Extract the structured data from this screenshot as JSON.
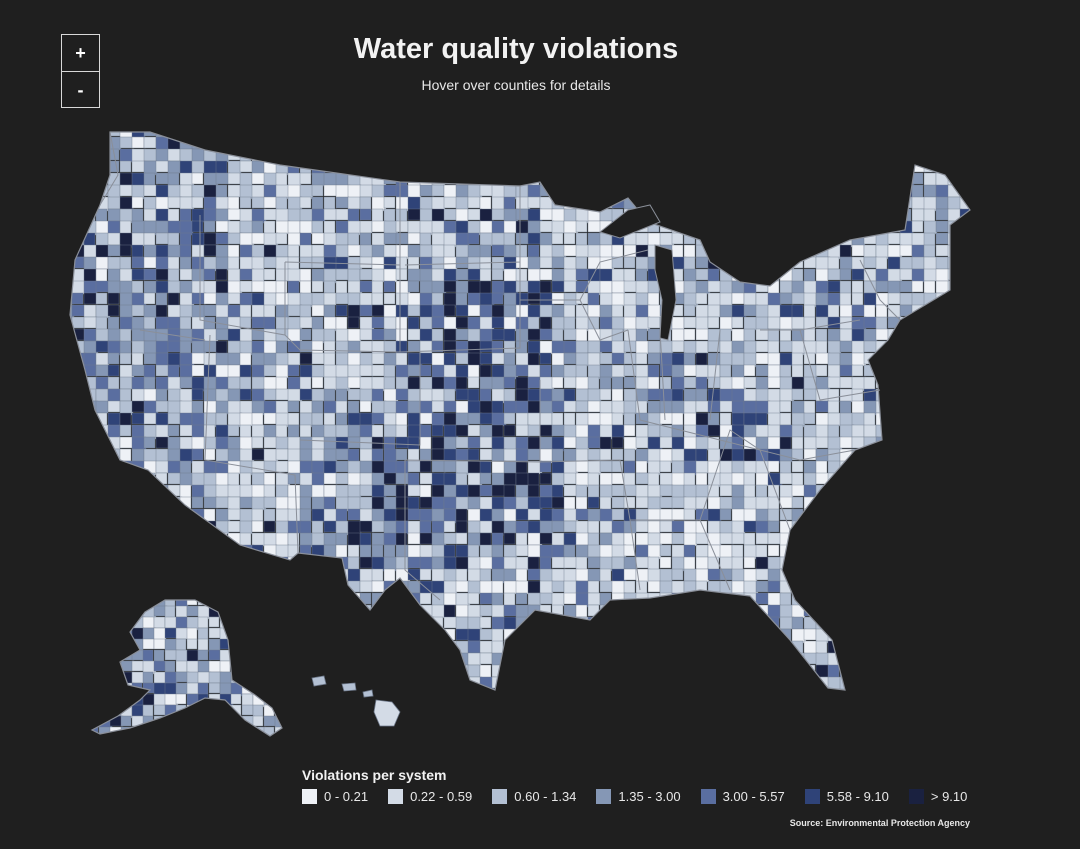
{
  "zoom": {
    "in_label": "+",
    "out_label": "-"
  },
  "header": {
    "title": "Water quality violations",
    "subtitle": "Hover over counties for details"
  },
  "legend": {
    "title": "Violations per system",
    "bins": [
      {
        "label": "0 - 0.21",
        "color": "#eef1f6"
      },
      {
        "label": "0.22 - 0.59",
        "color": "#d3dbe6"
      },
      {
        "label": "0.60 - 1.34",
        "color": "#b3c0d3"
      },
      {
        "label": "1.35 - 3.00",
        "color": "#8597b5"
      },
      {
        "label": "3.00 - 5.57",
        "color": "#5a6ea0"
      },
      {
        "label": "5.58 - 9.10",
        "color": "#2f4378"
      },
      {
        "label": "> 9.10",
        "color": "#1a2140"
      }
    ]
  },
  "source": "Source: Environmental Protection Agency",
  "map_style": {
    "background": "#1f1f1f",
    "state_border": "#8a8f99",
    "county_border": "#6f7a8c"
  }
}
